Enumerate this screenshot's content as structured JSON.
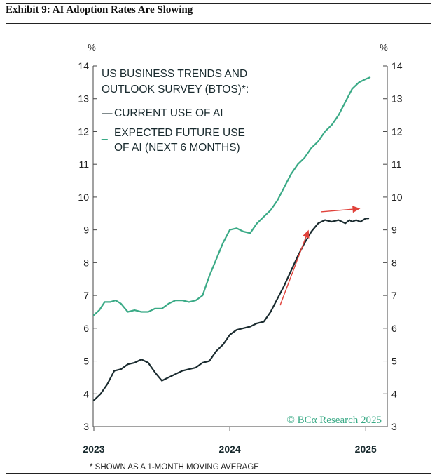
{
  "exhibit": {
    "title": "Exhibit 9: AI Adoption Rates Are Slowing"
  },
  "chart_data": {
    "type": "line",
    "title": "US BUSINESS TRENDS AND OUTLOOK SURVEY (BTOS)*:",
    "ylabel_left": "%",
    "ylabel_right": "%",
    "ylim": [
      3,
      14
    ],
    "yticks": [
      3,
      4,
      5,
      6,
      7,
      8,
      9,
      10,
      11,
      12,
      13,
      14
    ],
    "xticks": [
      {
        "label": "2023",
        "x": 2023.0
      },
      {
        "label": "2024",
        "x": 2024.0
      },
      {
        "label": "2025",
        "x": 2025.0
      }
    ],
    "xlim": [
      2023.0,
      2025.04
    ],
    "series": [
      {
        "name": "CURRENT USE OF AI",
        "color": "#1a2b2f",
        "x": [
          2023.0,
          2023.05,
          2023.1,
          2023.15,
          2023.2,
          2023.25,
          2023.3,
          2023.35,
          2023.4,
          2023.45,
          2023.5,
          2023.55,
          2023.6,
          2023.65,
          2023.7,
          2023.75,
          2023.8,
          2023.85,
          2023.9,
          2023.95,
          2024.0,
          2024.05,
          2024.1,
          2024.15,
          2024.2,
          2024.25,
          2024.3,
          2024.35,
          2024.4,
          2024.45,
          2024.5,
          2024.55,
          2024.6,
          2024.65,
          2024.7,
          2024.75,
          2024.8,
          2024.85,
          2024.88,
          2024.9,
          2024.93,
          2024.96,
          2025.0,
          2025.02
        ],
        "values": [
          3.8,
          4.0,
          4.3,
          4.7,
          4.75,
          4.9,
          4.95,
          5.05,
          4.95,
          4.65,
          4.4,
          4.5,
          4.6,
          4.7,
          4.75,
          4.8,
          4.95,
          5.0,
          5.3,
          5.5,
          5.8,
          5.95,
          6.0,
          6.05,
          6.15,
          6.2,
          6.5,
          6.9,
          7.3,
          7.75,
          8.2,
          8.6,
          8.95,
          9.2,
          9.3,
          9.25,
          9.3,
          9.2,
          9.3,
          9.25,
          9.3,
          9.25,
          9.35,
          9.35
        ]
      },
      {
        "name": "EXPECTED FUTURE USE OF AI (NEXT 6 MONTHS)",
        "color": "#3aaa86",
        "x": [
          2023.0,
          2023.04,
          2023.08,
          2023.12,
          2023.16,
          2023.2,
          2023.25,
          2023.3,
          2023.35,
          2023.4,
          2023.45,
          2023.5,
          2023.55,
          2023.6,
          2023.65,
          2023.7,
          2023.75,
          2023.8,
          2023.85,
          2023.9,
          2023.95,
          2024.0,
          2024.05,
          2024.1,
          2024.15,
          2024.2,
          2024.25,
          2024.3,
          2024.35,
          2024.4,
          2024.45,
          2024.5,
          2024.55,
          2024.6,
          2024.65,
          2024.7,
          2024.75,
          2024.8,
          2024.85,
          2024.9,
          2024.95,
          2025.0,
          2025.03
        ],
        "values": [
          6.4,
          6.55,
          6.8,
          6.8,
          6.85,
          6.75,
          6.5,
          6.55,
          6.5,
          6.5,
          6.6,
          6.6,
          6.75,
          6.85,
          6.85,
          6.8,
          6.85,
          7.0,
          7.6,
          8.1,
          8.6,
          9.0,
          9.05,
          8.95,
          8.9,
          9.2,
          9.4,
          9.6,
          9.9,
          10.3,
          10.7,
          11.0,
          11.2,
          11.5,
          11.7,
          12.0,
          12.2,
          12.5,
          12.9,
          13.3,
          13.5,
          13.6,
          13.65
        ]
      }
    ],
    "legend": {
      "position": "top-left",
      "items": [
        {
          "dash": "—",
          "label": "CURRENT USE OF AI"
        },
        {
          "dash": "_",
          "label": "EXPECTED FUTURE USE",
          "label2": "OF AI (NEXT 6 MONTHS)"
        }
      ]
    },
    "annotations": [
      {
        "type": "arrow",
        "color": "#e0413a",
        "from": [
          2024.37,
          6.7
        ],
        "to": [
          2024.58,
          9.0
        ]
      },
      {
        "type": "arrow",
        "color": "#e0413a",
        "from": [
          2024.67,
          9.55
        ],
        "to": [
          2024.96,
          9.65
        ]
      }
    ],
    "source": "© BCα Research 2025",
    "footnote": "* SHOWN AS A 1-MONTH MOVING AVERAGE"
  }
}
